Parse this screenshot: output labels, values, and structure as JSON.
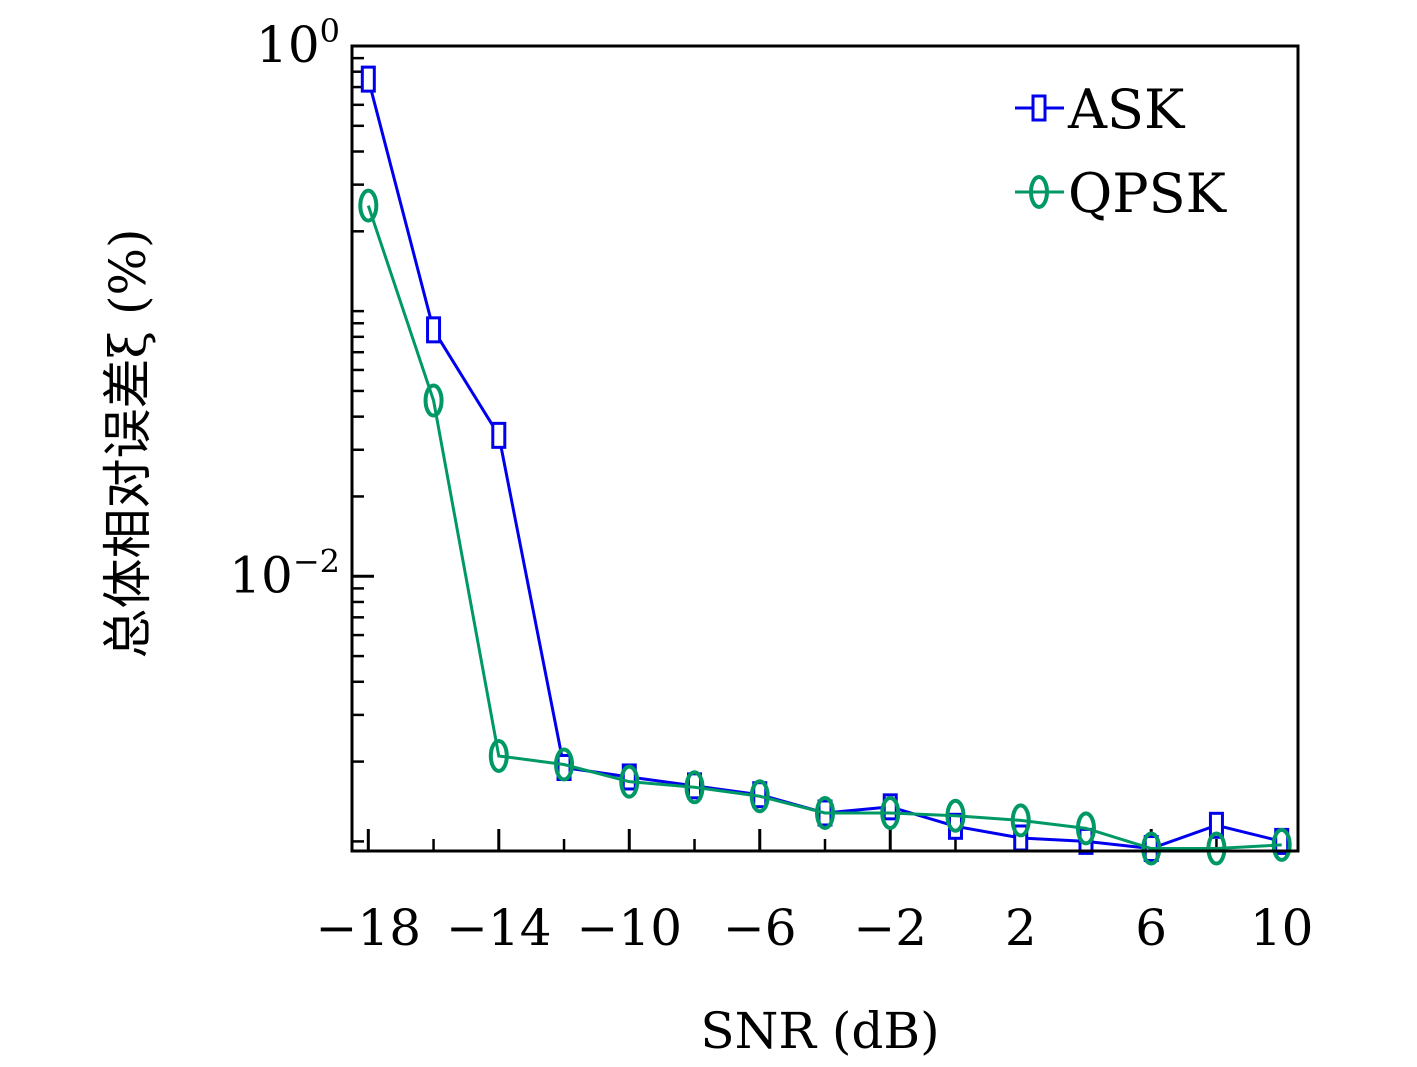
{
  "chart_data": {
    "type": "line",
    "x_scale": "linear",
    "y_scale": "log",
    "xlabel": "SNR (dB)",
    "ylabel": "总体相对误差ξ (%)",
    "xlim": [
      -18.5,
      10.5
    ],
    "ylim": [
      0.00092,
      1
    ],
    "x_ticks": [
      -18,
      -14,
      -10,
      -6,
      -2,
      2,
      6,
      10
    ],
    "x_tick_labels": [
      "−18",
      "−14",
      "−10",
      "−6",
      "−2",
      "2",
      "6",
      "10"
    ],
    "y_ticks": [
      {
        "value": 1,
        "base": "10",
        "exp": "0"
      },
      {
        "value": 0.01,
        "base": "10",
        "exp": "−2"
      }
    ],
    "legend_position": "top-right",
    "x": [
      -18,
      -16,
      -14,
      -12,
      -10,
      -8,
      -6,
      -4,
      -2,
      0,
      2,
      4,
      6,
      8,
      10
    ],
    "series": [
      {
        "name": "ASK",
        "color": "#0000ee",
        "marker": "square",
        "values": [
          0.75,
          0.085,
          0.034,
          0.0019,
          0.00175,
          0.00162,
          0.0015,
          0.00128,
          0.00135,
          0.00114,
          0.00103,
          0.001,
          0.00094,
          0.00115,
          0.001
        ]
      },
      {
        "name": "QPSK",
        "color": "#009966",
        "marker": "circle",
        "values": [
          0.25,
          0.046,
          0.0021,
          0.00195,
          0.00168,
          0.0016,
          0.00148,
          0.00128,
          0.00128,
          0.00125,
          0.0012,
          0.00112,
          0.00094,
          0.00094,
          0.00097
        ]
      }
    ]
  }
}
